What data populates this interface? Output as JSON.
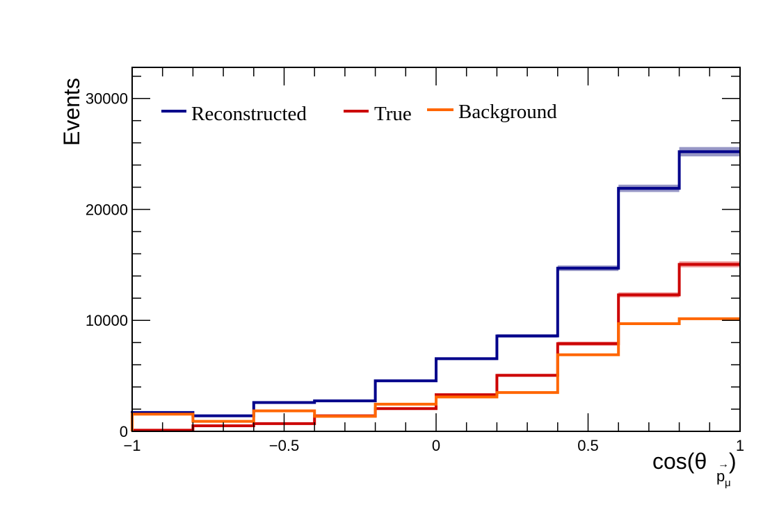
{
  "chart_data": {
    "type": "line",
    "step": true,
    "xlabel": "cos(θ",
    "xlabel_sub": "p",
    "xlabel_arrow": "→",
    "xlabel_subsub": "μ",
    "xlabel_close": ")",
    "ylabel": "Events",
    "xlim": [
      -1,
      1
    ],
    "ylim": [
      0,
      32800
    ],
    "x_edges": [
      -1,
      -0.8,
      -0.6,
      -0.4,
      -0.2,
      0,
      0.2,
      0.4,
      0.6,
      0.8,
      1
    ],
    "x_ticks": [
      {
        "value": -1,
        "label": "−1"
      },
      {
        "value": -0.5,
        "label": "−0.5"
      },
      {
        "value": 0,
        "label": "0"
      },
      {
        "value": 0.5,
        "label": "0.5"
      },
      {
        "value": 1,
        "label": "1"
      }
    ],
    "y_ticks": [
      {
        "value": 0,
        "label": "0"
      },
      {
        "value": 10000,
        "label": "10000"
      },
      {
        "value": 20000,
        "label": "20000"
      },
      {
        "value": 30000,
        "label": "30000"
      }
    ],
    "grid": false,
    "legend_position": "top",
    "series": [
      {
        "name": "Reconstructed",
        "color": "#00008b",
        "band_color": "#8c8cc0",
        "values": [
          1700,
          1400,
          2600,
          2750,
          4550,
          6550,
          8600,
          14700,
          21900,
          25200
        ],
        "errors": [
          60,
          60,
          80,
          80,
          100,
          120,
          150,
          250,
          330,
          420
        ]
      },
      {
        "name": "True",
        "color": "#cc0000",
        "band_color": "#f09090",
        "values": [
          100,
          500,
          700,
          1400,
          2050,
          3300,
          5050,
          7900,
          12300,
          15050
        ],
        "errors": [
          30,
          40,
          50,
          60,
          80,
          100,
          130,
          180,
          230,
          270
        ]
      },
      {
        "name": "Background",
        "color": "#ff6600",
        "band_color": "#ffb080",
        "values": [
          1550,
          900,
          1850,
          1350,
          2450,
          3100,
          3500,
          6900,
          9700,
          10150
        ],
        "errors": [
          0,
          0,
          0,
          0,
          0,
          0,
          0,
          0,
          0,
          0
        ]
      }
    ]
  }
}
